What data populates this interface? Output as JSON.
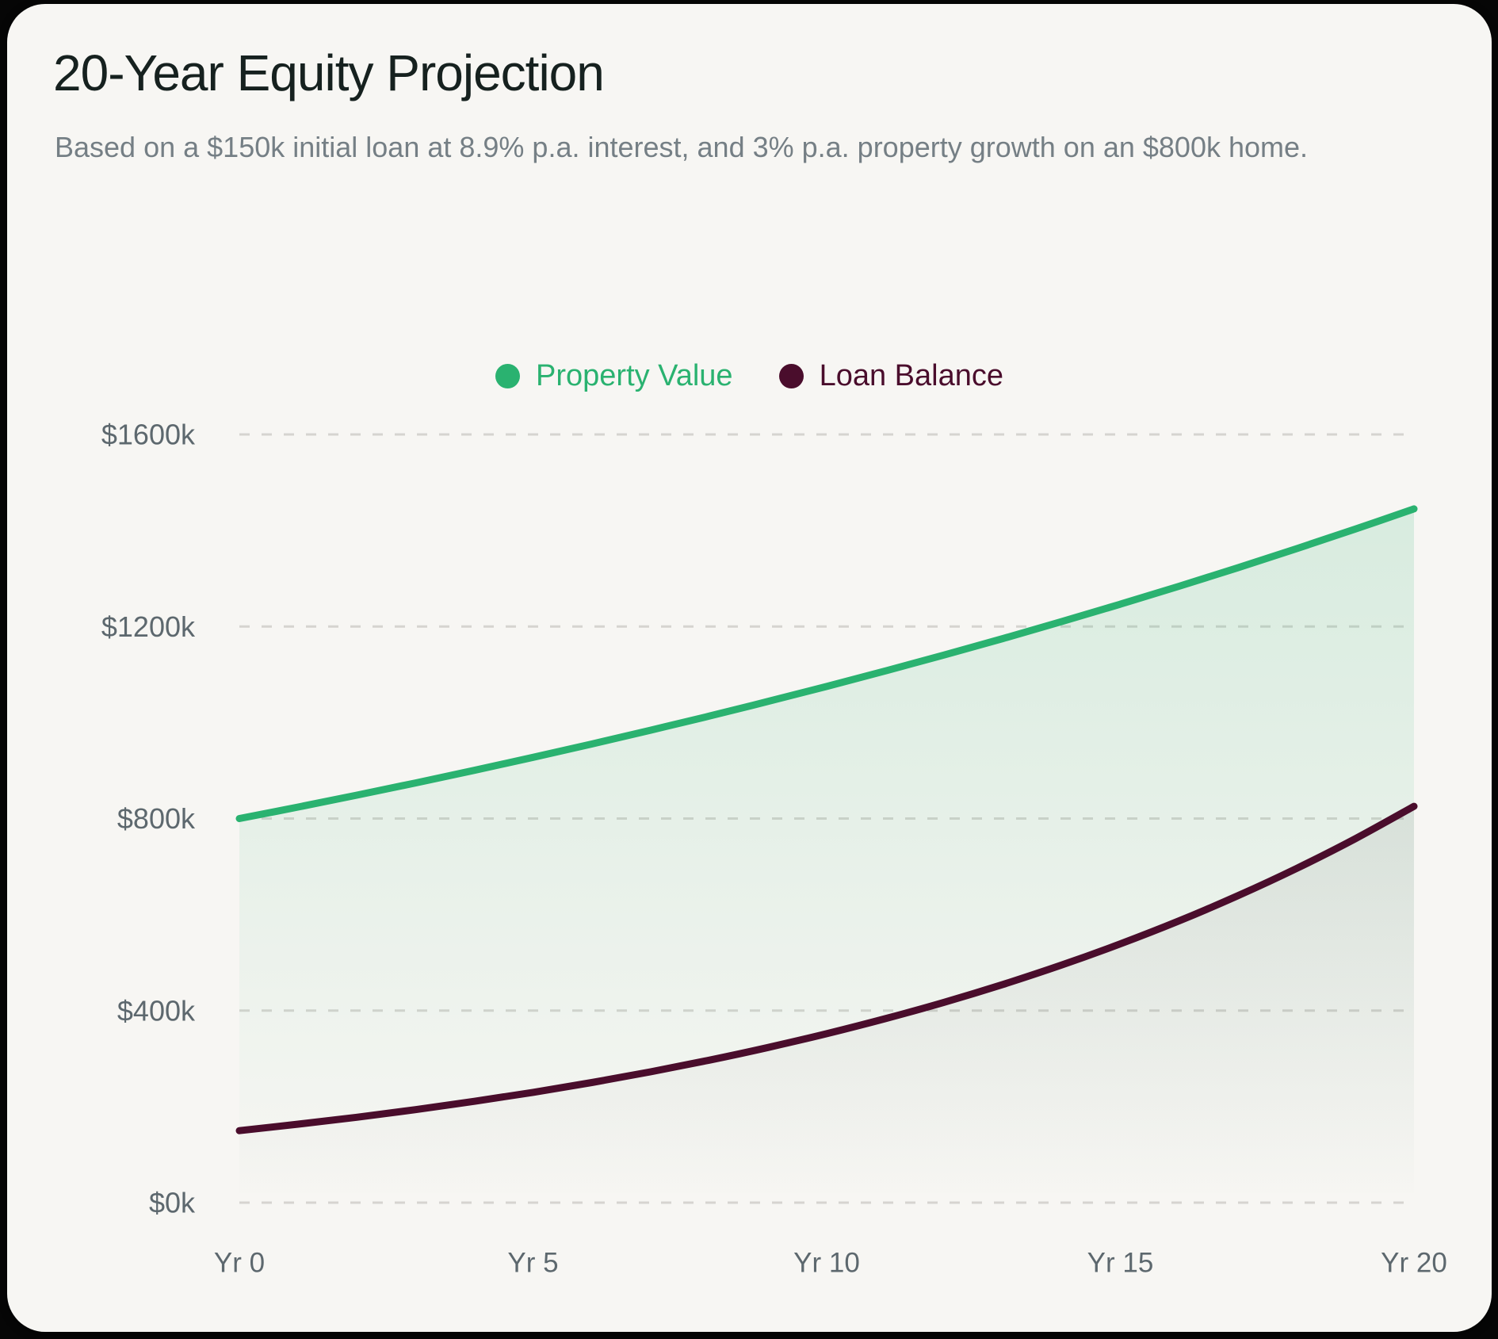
{
  "card": {
    "title": "20-Year Equity Projection",
    "subtitle": "Based on a $150k initial loan at 8.9% p.a. interest, and 3% p.a. property growth on an $800k home.",
    "background": "#f7f6f3",
    "page_background": "#060606"
  },
  "legend": [
    {
      "label": "Property Value",
      "color": "#2ab270"
    },
    {
      "label": "Loan Balance",
      "color": "#4a0d2c"
    }
  ],
  "chart_data": {
    "type": "area",
    "title": "20-Year Equity Projection",
    "xlabel": "",
    "ylabel": "",
    "x": [
      0,
      1,
      2,
      3,
      4,
      5,
      6,
      7,
      8,
      9,
      10,
      11,
      12,
      13,
      14,
      15,
      16,
      17,
      18,
      19,
      20
    ],
    "xlim": [
      0,
      20
    ],
    "ylim": [
      0,
      1600
    ],
    "x_ticks": [
      {
        "value": 0,
        "label": "Yr 0"
      },
      {
        "value": 5,
        "label": "Yr 5"
      },
      {
        "value": 10,
        "label": "Yr 10"
      },
      {
        "value": 15,
        "label": "Yr 15"
      },
      {
        "value": 20,
        "label": "Yr 20"
      }
    ],
    "y_ticks": [
      {
        "value": 0,
        "label": "$0k"
      },
      {
        "value": 400,
        "label": "$400k"
      },
      {
        "value": 800,
        "label": "$800k"
      },
      {
        "value": 1200,
        "label": "$1200k"
      },
      {
        "value": 1600,
        "label": "$1600k"
      }
    ],
    "grid": "horizontal-dashed",
    "grid_color": "#d6d4d0",
    "axis_text_color": "#5d686e",
    "legend_position": "top-center",
    "units": "thousands of dollars",
    "series": [
      {
        "name": "Property Value",
        "color": "#2ab270",
        "fill_from": "rgba(42,178,112,0.17)",
        "fill_to": "rgba(42,178,112,0)",
        "values": [
          800,
          824,
          848.7,
          874.2,
          900.4,
          927.4,
          955.2,
          983.9,
          1013.4,
          1043.8,
          1075.1,
          1107.4,
          1140.6,
          1174.8,
          1210.1,
          1246.4,
          1283.8,
          1322.3,
          1362,
          1402.8,
          1444.9
        ]
      },
      {
        "name": "Loan Balance",
        "color": "#4a0d2c",
        "fill_from": "rgba(62,50,58,0.16)",
        "fill_to": "rgba(62,50,58,0)",
        "values": [
          150,
          163.4,
          177.9,
          193.7,
          211,
          229.7,
          250.2,
          272.4,
          296.7,
          323.1,
          351.9,
          383.2,
          417.3,
          454.4,
          494.9,
          538.9,
          586.9,
          639.1,
          696,
          757.9,
          825.4
        ]
      }
    ]
  }
}
